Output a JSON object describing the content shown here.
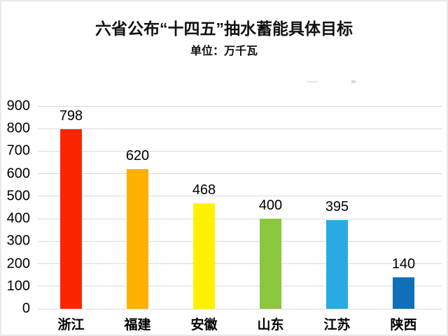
{
  "header": {
    "title": "六省公布“十四五”抽水蓄能具体目标",
    "subtitle": "单位：万千瓦"
  },
  "chart_data": {
    "type": "bar",
    "title": "六省公布“十四五”抽水蓄能具体目标",
    "subtitle": "单位：万千瓦",
    "unit": "万千瓦",
    "categories": [
      "浙江",
      "福建",
      "安徽",
      "山东",
      "江苏",
      "陕西"
    ],
    "values": [
      798,
      620,
      468,
      400,
      395,
      140
    ],
    "value_labels": [
      "798",
      "620",
      "468",
      "400",
      "395",
      "140"
    ],
    "bar_colors": [
      "#fb2600",
      "#fcb000",
      "#fff200",
      "#8cc63e",
      "#29abe2",
      "#0f6fb8"
    ],
    "xlabel": "",
    "ylabel": "",
    "ylim": [
      0,
      900
    ],
    "yticks": [
      0,
      100,
      200,
      300,
      400,
      500,
      600,
      700,
      800,
      900
    ],
    "grid": true,
    "gridline_color": "#d9d9d9",
    "legend": "none",
    "background": "#ffffff",
    "text_color": "#000000"
  }
}
